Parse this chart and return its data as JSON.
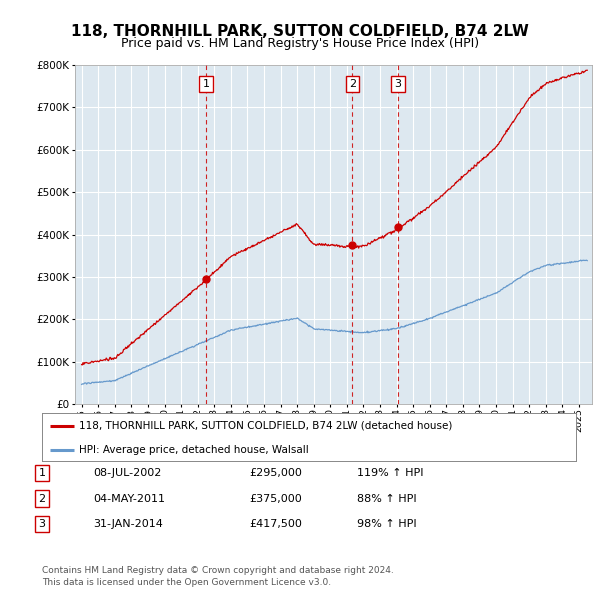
{
  "title": "118, THORNHILL PARK, SUTTON COLDFIELD, B74 2LW",
  "subtitle": "Price paid vs. HM Land Registry's House Price Index (HPI)",
  "ylim": [
    0,
    800000
  ],
  "yticks": [
    0,
    100000,
    200000,
    300000,
    400000,
    500000,
    600000,
    700000,
    800000
  ],
  "ytick_labels": [
    "£0",
    "£100K",
    "£200K",
    "£300K",
    "£400K",
    "£500K",
    "£600K",
    "£700K",
    "£800K"
  ],
  "xlim": [
    1994.6,
    2025.8
  ],
  "xtick_years": [
    1995,
    1996,
    1997,
    1998,
    1999,
    2000,
    2001,
    2002,
    2003,
    2004,
    2005,
    2006,
    2007,
    2008,
    2009,
    2010,
    2011,
    2012,
    2013,
    2014,
    2015,
    2016,
    2017,
    2018,
    2019,
    2020,
    2021,
    2022,
    2023,
    2024,
    2025
  ],
  "sale_dates": [
    2002.52,
    2011.34,
    2014.08
  ],
  "sale_prices": [
    295000,
    375000,
    417500
  ],
  "sale_labels": [
    "1",
    "2",
    "3"
  ],
  "legend_entries": [
    "118, THORNHILL PARK, SUTTON COLDFIELD, B74 2LW (detached house)",
    "HPI: Average price, detached house, Walsall"
  ],
  "table_rows": [
    [
      "1",
      "08-JUL-2002",
      "£295,000",
      "119% ↑ HPI"
    ],
    [
      "2",
      "04-MAY-2011",
      "£375,000",
      "88% ↑ HPI"
    ],
    [
      "3",
      "31-JAN-2014",
      "£417,500",
      "98% ↑ HPI"
    ]
  ],
  "footer": "Contains HM Land Registry data © Crown copyright and database right 2024.\nThis data is licensed under the Open Government Licence v3.0.",
  "red_color": "#cc0000",
  "blue_color": "#6699cc",
  "bg_color": "#dde8f0",
  "grid_color": "#ffffff"
}
